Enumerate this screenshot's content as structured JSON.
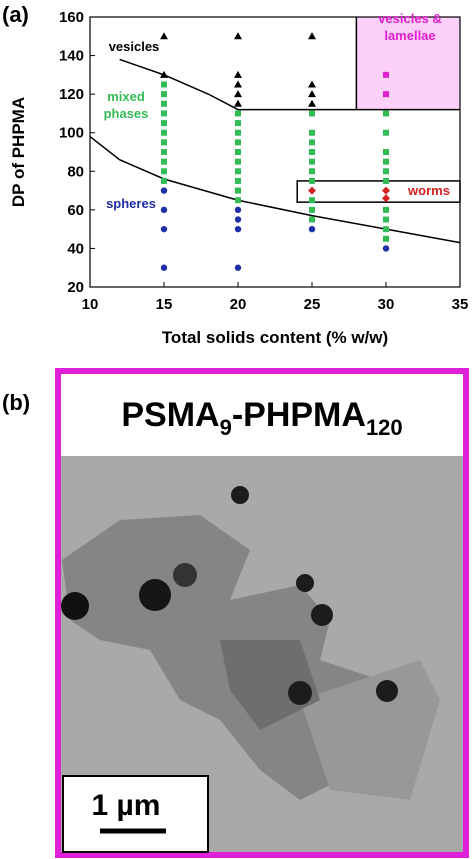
{
  "chart_data": {
    "type": "scatter",
    "panel_label": "(a)",
    "x_label": "Total solids content (% w/w)",
    "y_label": "DP of PHPMA",
    "xlim": [
      10,
      35
    ],
    "xticks": [
      10,
      15,
      20,
      25,
      30,
      35
    ],
    "ylim": [
      20,
      160
    ],
    "yticks": [
      20,
      40,
      60,
      80,
      100,
      120,
      140,
      160
    ],
    "series": [
      {
        "name": "spheres",
        "color": "#1f2fa8",
        "marker": "circle",
        "x": [
          15,
          15,
          15,
          15,
          20,
          20,
          20,
          20,
          25,
          30
        ],
        "y": [
          30,
          50,
          60,
          70,
          30,
          50,
          55,
          60,
          50,
          40
        ]
      },
      {
        "name": "mixed phases",
        "color": "#33bb55",
        "marker": "square",
        "x": [
          15,
          15,
          15,
          15,
          15,
          15,
          15,
          15,
          15,
          15,
          15,
          20,
          20,
          20,
          20,
          20,
          20,
          20,
          20,
          20,
          20,
          25,
          25,
          25,
          25,
          25,
          25,
          25,
          25,
          25,
          25,
          30,
          30,
          30,
          30,
          30,
          30,
          30,
          30,
          30,
          30
        ],
        "y": [
          75,
          80,
          85,
          90,
          95,
          100,
          105,
          110,
          115,
          120,
          125,
          65,
          70,
          75,
          80,
          85,
          90,
          95,
          100,
          105,
          110,
          55,
          60,
          65,
          75,
          80,
          85,
          90,
          95,
          100,
          110,
          45,
          50,
          55,
          60,
          75,
          80,
          85,
          90,
          100,
          110
        ]
      },
      {
        "name": "vesicles",
        "color": "#000000",
        "marker": "triangle",
        "x": [
          15,
          15,
          20,
          20,
          20,
          20,
          20,
          25,
          25,
          25,
          25
        ],
        "y": [
          130,
          150,
          115,
          120,
          125,
          130,
          150,
          115,
          120,
          125,
          150
        ]
      },
      {
        "name": "worms",
        "color": "#d42020",
        "marker": "diamond",
        "x": [
          25,
          30,
          30
        ],
        "y": [
          70,
          66,
          70
        ]
      },
      {
        "name": "vesicles & lamellae",
        "color": "#e020d0",
        "marker": "square",
        "x": [
          30,
          30
        ],
        "y": [
          120,
          130
        ]
      }
    ],
    "boundaries": [
      {
        "x": [
          12,
          15,
          18,
          20,
          35
        ],
        "y": [
          138,
          130,
          120,
          112,
          112
        ]
      },
      {
        "x": [
          10,
          12,
          15,
          20,
          25,
          30,
          35
        ],
        "y": [
          98,
          86,
          76,
          65,
          57,
          50,
          43
        ]
      }
    ],
    "regions": [
      {
        "x": [
          28,
          35
        ],
        "y": [
          112,
          160
        ],
        "fill": "#fcd0f8"
      },
      {
        "x": [
          24,
          35
        ],
        "y": [
          64,
          75
        ],
        "fill": "none"
      }
    ]
  },
  "image_panel": {
    "panel_label": "(b)",
    "title": [
      {
        "text": "PSMA"
      },
      {
        "text": "9",
        "sub": true
      },
      {
        "text": "-PHPMA"
      },
      {
        "text": "120",
        "sub": true
      }
    ],
    "scale_bar": "1 µm"
  }
}
